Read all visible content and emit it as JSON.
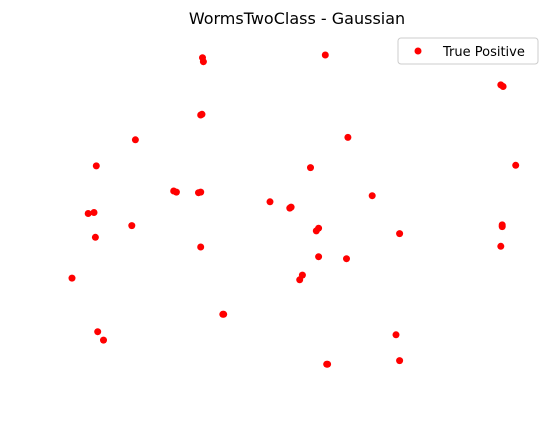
{
  "chart_data": {
    "type": "scatter",
    "title": "WormsTwoClass - Gaussian",
    "xlabel": "",
    "ylabel": "",
    "axes_visible": false,
    "grid": false,
    "legend": {
      "placement": "top-right",
      "entries": [
        "True Positive"
      ]
    },
    "xlim": [
      0,
      100
    ],
    "ylim": [
      0,
      100
    ],
    "series": [
      {
        "name": "True Positive",
        "color": "#ff0000",
        "marker": "circle",
        "points": [
          [
            29.0,
            97.1
          ],
          [
            29.2,
            95.9
          ],
          [
            56.3,
            97.9
          ],
          [
            95.3,
            89.0
          ],
          [
            95.8,
            88.5
          ],
          [
            28.6,
            80.0
          ],
          [
            28.9,
            80.2
          ],
          [
            14.1,
            72.6
          ],
          [
            61.3,
            73.3
          ],
          [
            5.4,
            64.8
          ],
          [
            53.0,
            64.3
          ],
          [
            98.6,
            65.0
          ],
          [
            22.6,
            57.3
          ],
          [
            23.2,
            57.0
          ],
          [
            28.1,
            56.8
          ],
          [
            28.6,
            57.0
          ],
          [
            66.7,
            55.9
          ],
          [
            44.0,
            54.1
          ],
          [
            48.4,
            52.2
          ],
          [
            48.7,
            52.5
          ],
          [
            3.6,
            50.6
          ],
          [
            4.9,
            50.9
          ],
          [
            13.3,
            47.0
          ],
          [
            54.3,
            45.4
          ],
          [
            54.8,
            46.2
          ],
          [
            95.6,
            46.7
          ],
          [
            95.6,
            47.2
          ],
          [
            72.8,
            44.6
          ],
          [
            5.2,
            43.5
          ],
          [
            28.6,
            40.6
          ],
          [
            95.3,
            40.8
          ],
          [
            54.8,
            37.7
          ],
          [
            61.0,
            37.1
          ],
          [
            51.2,
            32.2
          ],
          [
            50.6,
            30.8
          ],
          [
            0.0,
            31.3
          ],
          [
            33.5,
            20.5
          ],
          [
            33.7,
            20.5
          ],
          [
            5.7,
            15.3
          ],
          [
            7.0,
            12.8
          ],
          [
            72.0,
            14.4
          ],
          [
            72.8,
            6.7
          ],
          [
            56.6,
            5.6
          ],
          [
            56.8,
            5.6
          ]
        ]
      }
    ]
  }
}
